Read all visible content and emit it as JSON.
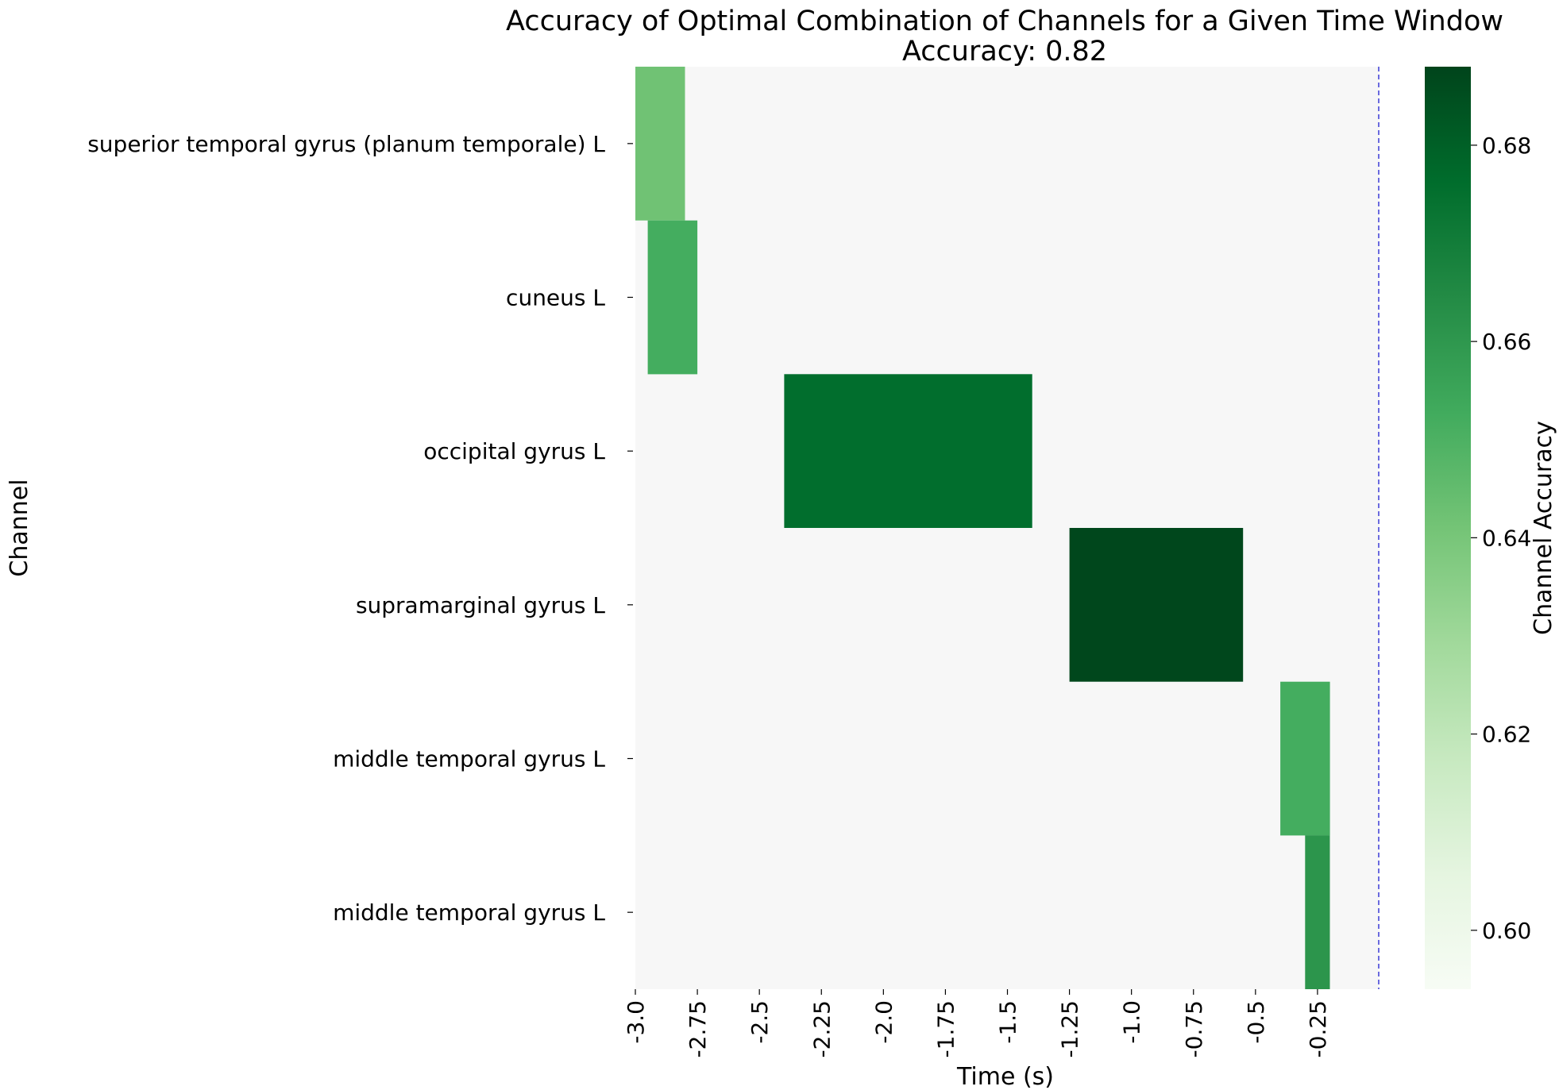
{
  "chart_data": {
    "type": "heatmap",
    "title": "Accuracy of Optimal Combination of Channels for a Given Time Window",
    "subtitle": "Accuracy: 0.82",
    "xlabel": "Time (s)",
    "ylabel": "Channel",
    "colorbar_label": "Channel Accuracy",
    "xlim": [
      -3.0,
      0.0
    ],
    "x_ticks": [
      -3.0,
      -2.75,
      -2.5,
      -2.25,
      -2.0,
      -1.75,
      -1.5,
      -1.25,
      -1.0,
      -0.75,
      -0.5,
      -0.25
    ],
    "x_tick_labels": [
      "-3.0",
      "-2.75",
      "-2.5",
      "-2.25",
      "-2.0",
      "-1.75",
      "-1.5",
      "-1.25",
      "-1.0",
      "-0.75",
      "-0.5",
      "-0.25"
    ],
    "channels": [
      "superior temporal gyrus (planum temporale) L",
      "cuneus L",
      "occipital gyrus L",
      "supramarginal gyrus L",
      "middle temporal gyrus L",
      "middle temporal gyrus L"
    ],
    "cells": [
      {
        "channel_index": 0,
        "start": -3.0,
        "end": -2.8,
        "accuracy": 0.642
      },
      {
        "channel_index": 1,
        "start": -2.95,
        "end": -2.75,
        "accuracy": 0.652
      },
      {
        "channel_index": 2,
        "start": -2.4,
        "end": -1.4,
        "accuracy": 0.676
      },
      {
        "channel_index": 3,
        "start": -1.25,
        "end": -0.55,
        "accuracy": 0.687
      },
      {
        "channel_index": 4,
        "start": -0.4,
        "end": -0.2,
        "accuracy": 0.652
      },
      {
        "channel_index": 5,
        "start": -0.3,
        "end": -0.2,
        "accuracy": 0.661
      }
    ],
    "vline": {
      "x": 0.0,
      "color": "#3b3bd6",
      "style": "dashed"
    },
    "colorbar": {
      "vmin": 0.594,
      "vmax": 0.688,
      "ticks": [
        0.6,
        0.62,
        0.64,
        0.66,
        0.68
      ],
      "tick_labels": [
        "0.60",
        "0.62",
        "0.64",
        "0.66",
        "0.68"
      ],
      "colormap": "Greens"
    },
    "background_color": "#f7f7f7",
    "grid": false
  }
}
